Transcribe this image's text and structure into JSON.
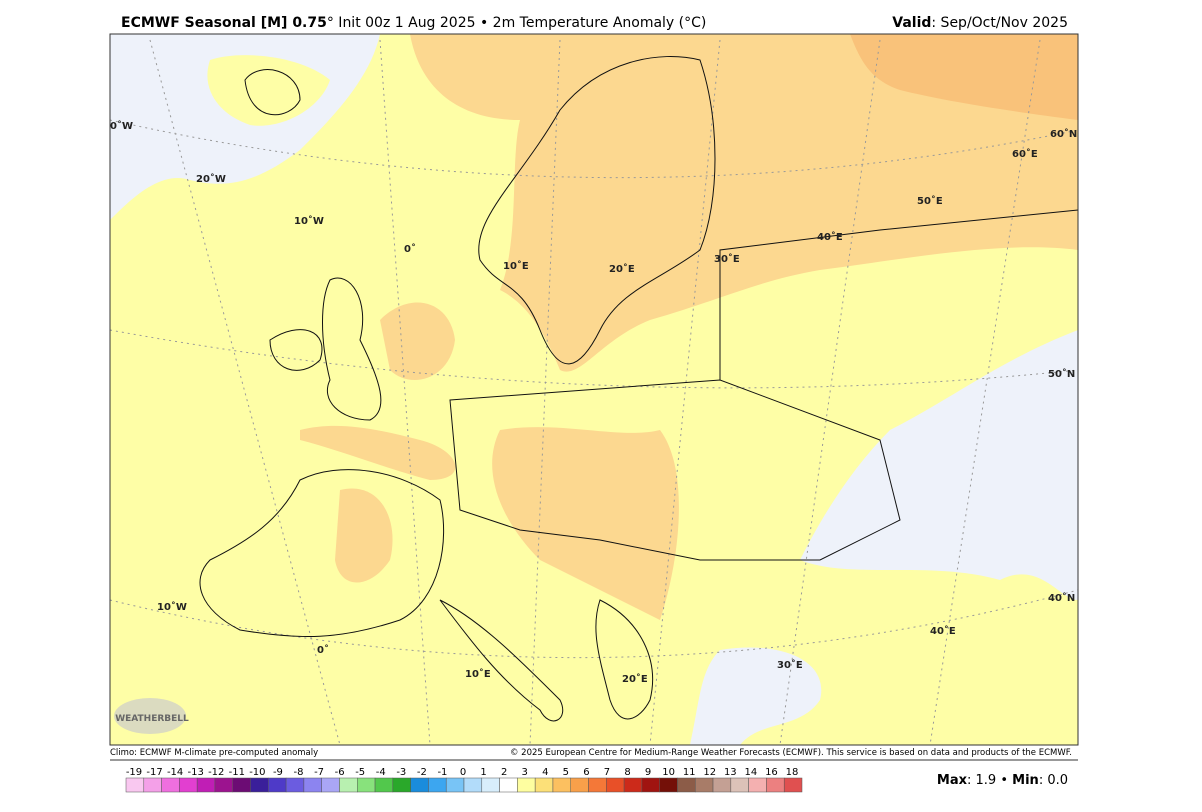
{
  "header": {
    "title_bold": "ECMWF Seasonal [M] 0.75",
    "title_rest": "° Init 00z 1 Aug 2025 • 2m Temperature Anomaly (°C)",
    "valid_label": "Valid",
    "valid_value": ": Sep/Oct/Nov 2025"
  },
  "map": {
    "labels": [
      "0˚W",
      "20˚W",
      "10˚W",
      "0˚",
      "10˚E",
      "20˚E",
      "30˚E",
      "40˚E",
      "50˚E",
      "60˚E",
      "60˚N",
      "50˚N",
      "40˚N",
      "40˚E",
      "30˚E",
      "20˚E",
      "10˚E",
      "0˚",
      "10˚W"
    ],
    "logo": "WEATHERBELL"
  },
  "footer": {
    "left": "Climo: ECMWF M-climate pre-computed anomaly",
    "right": "© 2025 European Centre for Medium-Range Weather Forecasts (ECMWF). This service is based on data and products of the ECMWF."
  },
  "colorbar": {
    "labels": [
      "-19",
      "-17",
      "-14",
      "-13",
      "-12",
      "-11",
      "-10",
      "-9",
      "-8",
      "-7",
      "-6",
      "-5",
      "-4",
      "-3",
      "-2",
      "-1",
      "0",
      "1",
      "2",
      "3",
      "4",
      "5",
      "6",
      "7",
      "8",
      "9",
      "10",
      "11",
      "12",
      "13",
      "14",
      "16",
      "18"
    ],
    "colors": [
      "#f9c8f0",
      "#f4a0e8",
      "#ef6fdf",
      "#e23fd0",
      "#c01eb5",
      "#9c138f",
      "#6c0c74",
      "#3a1f9a",
      "#4e3ac8",
      "#6b5ce0",
      "#8c84f0",
      "#aaa6f6",
      "#b8f0b0",
      "#88e27c",
      "#52c84c",
      "#2aa82a",
      "#1a8cdc",
      "#3ca6f0",
      "#78c4f6",
      "#b2dcfa",
      "#d8eefc",
      "#ffffff",
      "#fefea0",
      "#fce078",
      "#fcc060",
      "#f8a04a",
      "#f47838",
      "#e85028",
      "#cc2a1a",
      "#a01410",
      "#741008",
      "#8c5c48",
      "#a87c68",
      "#c4a094",
      "#dcc2b8",
      "#f4b0b0",
      "#ec8080",
      "#e05050"
    ]
  },
  "stats": {
    "max_label": "Max",
    "max_value": ": 1.9 •",
    "min_label": "Min",
    "min_value": ": 0.0"
  }
}
